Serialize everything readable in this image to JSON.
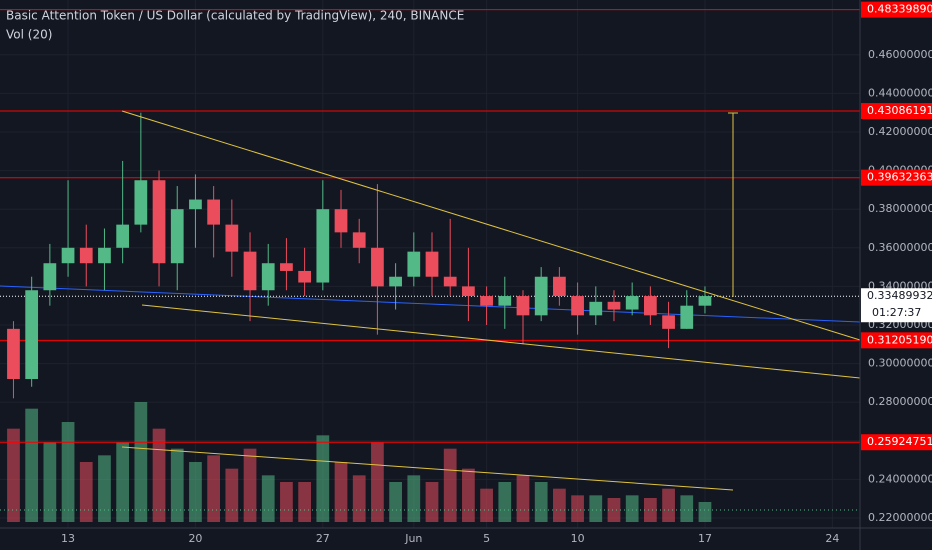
{
  "chart_data": {
    "type": "candlestick",
    "title": "Basic Attention Token / US Dollar (calculated by TradingView), 240, BINANCE",
    "subtitle": "Vol (20)",
    "x": [
      -3,
      -2,
      -1,
      0,
      1,
      2,
      3,
      4,
      5,
      6,
      7,
      8,
      9,
      10,
      11,
      12,
      13,
      14,
      15,
      16,
      17,
      18,
      19,
      20,
      21,
      22,
      23,
      24,
      25,
      26,
      27,
      28,
      29,
      30,
      31,
      32,
      33,
      34,
      35
    ],
    "open": [
      0.318,
      0.292,
      0.338,
      0.352,
      0.36,
      0.352,
      0.36,
      0.372,
      0.395,
      0.352,
      0.38,
      0.385,
      0.372,
      0.358,
      0.338,
      0.352,
      0.348,
      0.342,
      0.38,
      0.368,
      0.36,
      0.34,
      0.345,
      0.358,
      0.345,
      0.34,
      0.335,
      0.33,
      0.335,
      0.325,
      0.345,
      0.335,
      0.325,
      0.332,
      0.328,
      0.335,
      0.325,
      0.318,
      0.33
    ],
    "high": [
      0.322,
      0.345,
      0.362,
      0.395,
      0.372,
      0.37,
      0.405,
      0.43,
      0.4,
      0.392,
      0.398,
      0.392,
      0.385,
      0.368,
      0.362,
      0.365,
      0.36,
      0.395,
      0.39,
      0.375,
      0.393,
      0.352,
      0.368,
      0.368,
      0.375,
      0.36,
      0.34,
      0.345,
      0.338,
      0.35,
      0.35,
      0.342,
      0.34,
      0.338,
      0.342,
      0.34,
      0.332,
      0.338,
      0.34
    ],
    "low": [
      0.282,
      0.288,
      0.33,
      0.345,
      0.34,
      0.338,
      0.352,
      0.368,
      0.34,
      0.338,
      0.36,
      0.355,
      0.345,
      0.322,
      0.33,
      0.338,
      0.335,
      0.338,
      0.36,
      0.352,
      0.315,
      0.328,
      0.34,
      0.335,
      0.335,
      0.322,
      0.32,
      0.318,
      0.31,
      0.322,
      0.33,
      0.315,
      0.32,
      0.322,
      0.325,
      0.32,
      0.308,
      0.318,
      0.326
    ],
    "close": [
      0.292,
      0.338,
      0.352,
      0.36,
      0.352,
      0.36,
      0.372,
      0.395,
      0.352,
      0.38,
      0.385,
      0.372,
      0.358,
      0.338,
      0.352,
      0.348,
      0.342,
      0.38,
      0.368,
      0.36,
      0.34,
      0.345,
      0.358,
      0.345,
      0.34,
      0.335,
      0.33,
      0.335,
      0.325,
      0.345,
      0.335,
      0.325,
      0.332,
      0.328,
      0.335,
      0.325,
      0.318,
      0.33,
      0.335
    ],
    "volume": [
      70,
      85,
      60,
      75,
      45,
      50,
      60,
      90,
      70,
      55,
      45,
      50,
      40,
      55,
      35,
      30,
      30,
      65,
      45,
      35,
      60,
      30,
      35,
      30,
      55,
      40,
      25,
      30,
      35,
      30,
      25,
      20,
      20,
      18,
      20,
      18,
      25,
      20,
      15
    ],
    "xlim": [
      -3.74,
      43.52
    ],
    "xticks": [
      {
        "value": 0,
        "label": "13"
      },
      {
        "value": 7,
        "label": "20"
      },
      {
        "value": 14,
        "label": "27"
      },
      {
        "value": 19,
        "label": "Jun"
      },
      {
        "value": 23,
        "label": "5"
      },
      {
        "value": 28,
        "label": "10"
      },
      {
        "value": 35,
        "label": "17"
      },
      {
        "value": 42,
        "label": "24"
      }
    ],
    "ylim": [
      0.2034,
      0.4884
    ],
    "yticks": [
      {
        "value": 0.22,
        "label": "0.22000000"
      },
      {
        "value": 0.24,
        "label": "0.24000000"
      },
      {
        "value": 0.26,
        "label": "0.26000000"
      },
      {
        "value": 0.28,
        "label": "0.28000000"
      },
      {
        "value": 0.3,
        "label": "0.30000000"
      },
      {
        "value": 0.32,
        "label": "0.32000000"
      },
      {
        "value": 0.34,
        "label": "0.34000000"
      },
      {
        "value": 0.36,
        "label": "0.36000000"
      },
      {
        "value": 0.38,
        "label": "0.38000000"
      },
      {
        "value": 0.4,
        "label": "0.40000000"
      },
      {
        "value": 0.42,
        "label": "0.42000000"
      },
      {
        "value": 0.44,
        "label": "0.44000000"
      },
      {
        "value": 0.46,
        "label": "0.46000000"
      }
    ],
    "levels": [
      {
        "value": 0.4833989,
        "label": "0.48339890"
      },
      {
        "value": 0.43086191,
        "label": "0.43086191"
      },
      {
        "value": 0.39632363,
        "label": "0.39632363"
      },
      {
        "value": 0.3120519,
        "label": "0.31205190"
      },
      {
        "value": 0.25924751,
        "label": "0.25924751"
      }
    ],
    "last_price": 0.33489932,
    "countdown": "01:27:37",
    "up_color": "#53b987",
    "down_color": "#eb4d5c",
    "level_color": "#ff0000"
  }
}
